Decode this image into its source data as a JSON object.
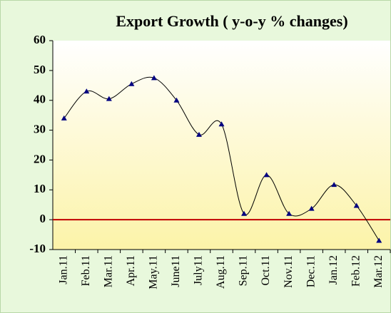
{
  "chart_data": {
    "type": "line",
    "title": "Export Growth ( y-o-y % changes)",
    "categories": [
      "Jan.11",
      "Feb.11",
      "Mar.11",
      "Apr.11",
      "May.11",
      "June11",
      "July11",
      "Aug.11",
      "Sep.11",
      "Oct.11",
      "Nov.11",
      "Dec.11",
      "Jan.12",
      "Feb.12",
      "Mar.12"
    ],
    "values": [
      34,
      43,
      40.5,
      45.5,
      47.5,
      40,
      28.5,
      32,
      2,
      15,
      2,
      3.7,
      11.7,
      4.7,
      -7
    ],
    "line_color": "#000000",
    "marker_color": "#000080",
    "zero_line_color": "#c00000",
    "ylim": [
      -10,
      60
    ],
    "yticks": [
      -10,
      0,
      10,
      20,
      30,
      40,
      50,
      60
    ],
    "smooth": true
  }
}
